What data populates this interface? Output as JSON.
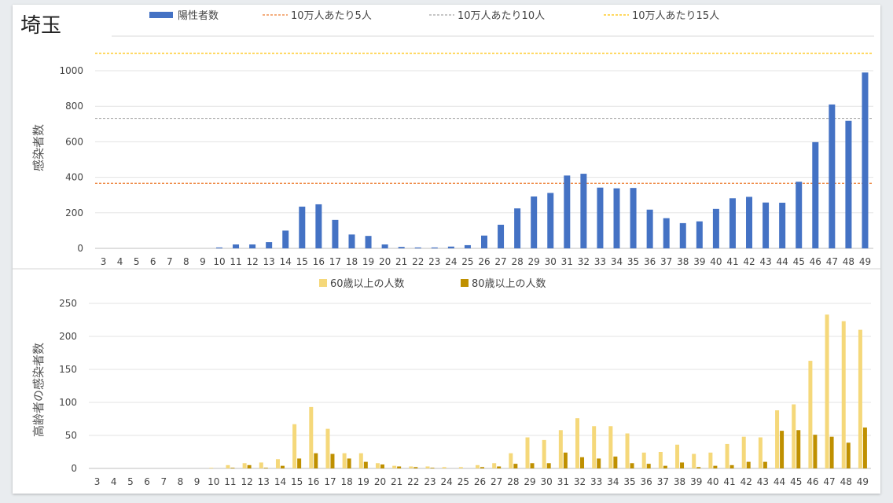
{
  "page": {
    "title": "埼玉"
  },
  "chart_data": [
    {
      "type": "bar",
      "ylabel": "感染者数",
      "ylim": [
        0,
        1100
      ],
      "yticks": [
        0,
        200,
        400,
        600,
        800,
        1000
      ],
      "legend": [
        {
          "name": "陽性者数",
          "kind": "bar",
          "color": "#4472c4"
        },
        {
          "name": "10万人あたり5人",
          "kind": "line",
          "color": "#ed7d31",
          "value": 366
        },
        {
          "name": "10万人あたり10人",
          "kind": "line",
          "color": "#a5a5a5",
          "value": 732
        },
        {
          "name": "10万人あたり15人",
          "kind": "line",
          "color": "#ffc000",
          "value": 1098
        }
      ],
      "categories": [
        "3",
        "4",
        "5",
        "6",
        "7",
        "8",
        "9",
        "10",
        "11",
        "12",
        "13",
        "14",
        "15",
        "16",
        "17",
        "18",
        "19",
        "20",
        "21",
        "22",
        "23",
        "24",
        "25",
        "26",
        "27",
        "28",
        "29",
        "30",
        "31",
        "32",
        "33",
        "34",
        "35",
        "36",
        "37",
        "38",
        "39",
        "40",
        "41",
        "42",
        "43",
        "44",
        "45",
        "46",
        "47",
        "48",
        "49"
      ],
      "series": [
        {
          "name": "陽性者数",
          "color": "#4472c4",
          "values": [
            0,
            0,
            0,
            0,
            0,
            0,
            0,
            5,
            22,
            22,
            35,
            100,
            235,
            248,
            160,
            78,
            70,
            22,
            8,
            5,
            5,
            10,
            18,
            72,
            133,
            225,
            292,
            312,
            410,
            420,
            342,
            338,
            340,
            218,
            170,
            142,
            152,
            222,
            282,
            290,
            258,
            257,
            375,
            598,
            810,
            718,
            990
          ]
        }
      ]
    },
    {
      "type": "bar",
      "ylabel": "高齢者の感染者数",
      "ylim": [
        0,
        250
      ],
      "yticks": [
        0,
        50,
        100,
        150,
        200,
        250
      ],
      "categories": [
        "3",
        "4",
        "5",
        "6",
        "7",
        "8",
        "9",
        "10",
        "11",
        "12",
        "13",
        "14",
        "15",
        "16",
        "17",
        "18",
        "19",
        "20",
        "21",
        "22",
        "23",
        "24",
        "25",
        "26",
        "27",
        "28",
        "29",
        "30",
        "31",
        "32",
        "33",
        "34",
        "35",
        "36",
        "37",
        "38",
        "39",
        "40",
        "41",
        "42",
        "43",
        "44",
        "45",
        "46",
        "47",
        "48",
        "49"
      ],
      "series": [
        {
          "name": "60歳以上の人数",
          "color": "#f5d87a",
          "values": [
            0,
            0,
            0,
            0,
            0,
            0,
            0,
            1,
            5,
            8,
            9,
            14,
            67,
            93,
            60,
            23,
            23,
            8,
            4,
            3,
            3,
            2,
            2,
            5,
            8,
            23,
            47,
            43,
            58,
            76,
            64,
            64,
            53,
            24,
            25,
            36,
            22,
            24,
            37,
            48,
            47,
            88,
            97,
            163,
            233,
            223,
            210
          ]
        },
        {
          "name": "80歳以上の人数",
          "color": "#bf9000",
          "values": [
            0,
            0,
            0,
            0,
            0,
            0,
            0,
            0,
            1,
            5,
            1,
            4,
            15,
            23,
            22,
            15,
            10,
            6,
            3,
            2,
            1,
            0,
            0,
            2,
            3,
            7,
            8,
            8,
            24,
            17,
            15,
            18,
            8,
            7,
            4,
            9,
            2,
            4,
            5,
            10,
            10,
            57,
            58,
            51,
            48,
            39,
            62
          ]
        }
      ]
    }
  ]
}
